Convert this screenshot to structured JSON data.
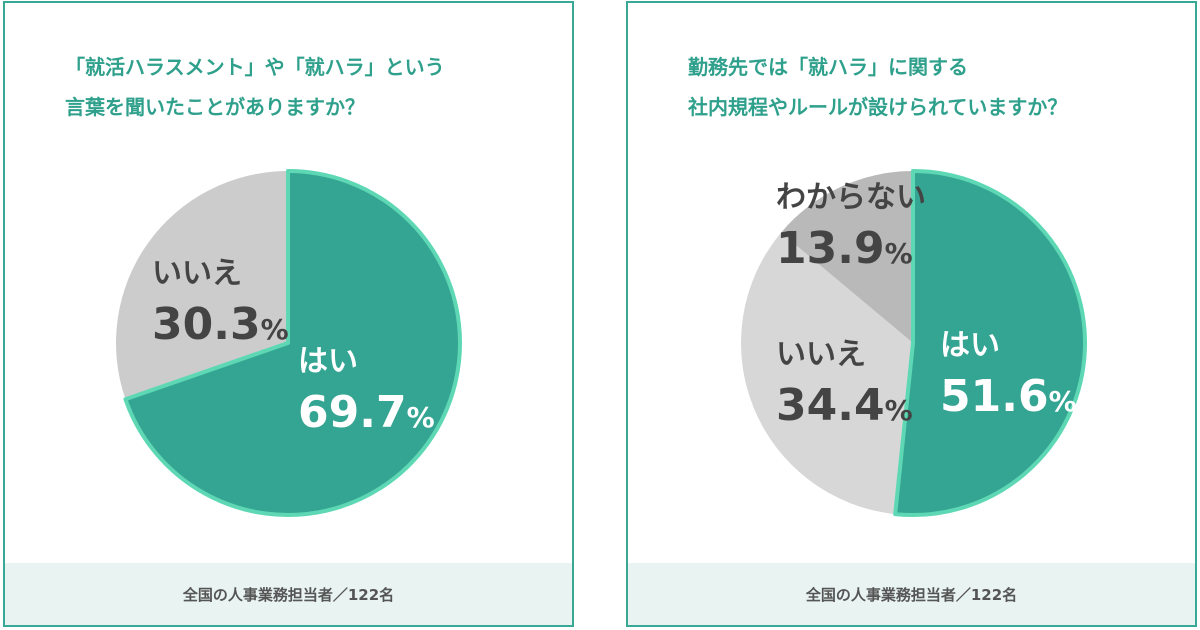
{
  "charts": [
    {
      "question_line1": "「就活ハラスメント」や「就ハラ」という",
      "question_line2": "言葉を聞いたことがありますか？",
      "footer": "全国の人事業務担当者／122名"
    },
    {
      "question_line1": "勤務先では「就ハラ」に関する",
      "question_line2": "社内規程やルールが設けられていますか？",
      "footer": "全国の人事業務担当者／122名"
    }
  ],
  "colors": {
    "border": "#3aa896",
    "title": "#2fa08c",
    "yes": "#35a593",
    "no": "#cccccc",
    "unknown": "#b9b9b9",
    "yes_text": "#ffffff",
    "other_text": "#444444",
    "footer_bg": "#e9f4f2"
  },
  "chart_data": [
    {
      "type": "pie",
      "slices": [
        {
          "label": "はい",
          "value": 69.7,
          "value_label": "69.7%"
        },
        {
          "label": "いいえ",
          "value": 30.3,
          "value_label": "30.3%"
        }
      ]
    },
    {
      "type": "pie",
      "slices": [
        {
          "label": "はい",
          "value": 51.6,
          "value_label": "51.6%"
        },
        {
          "label": "いいえ",
          "value": 34.4,
          "value_label": "34.4%"
        },
        {
          "label": "わからない",
          "value": 13.9,
          "value_label": "13.9%"
        }
      ]
    }
  ]
}
